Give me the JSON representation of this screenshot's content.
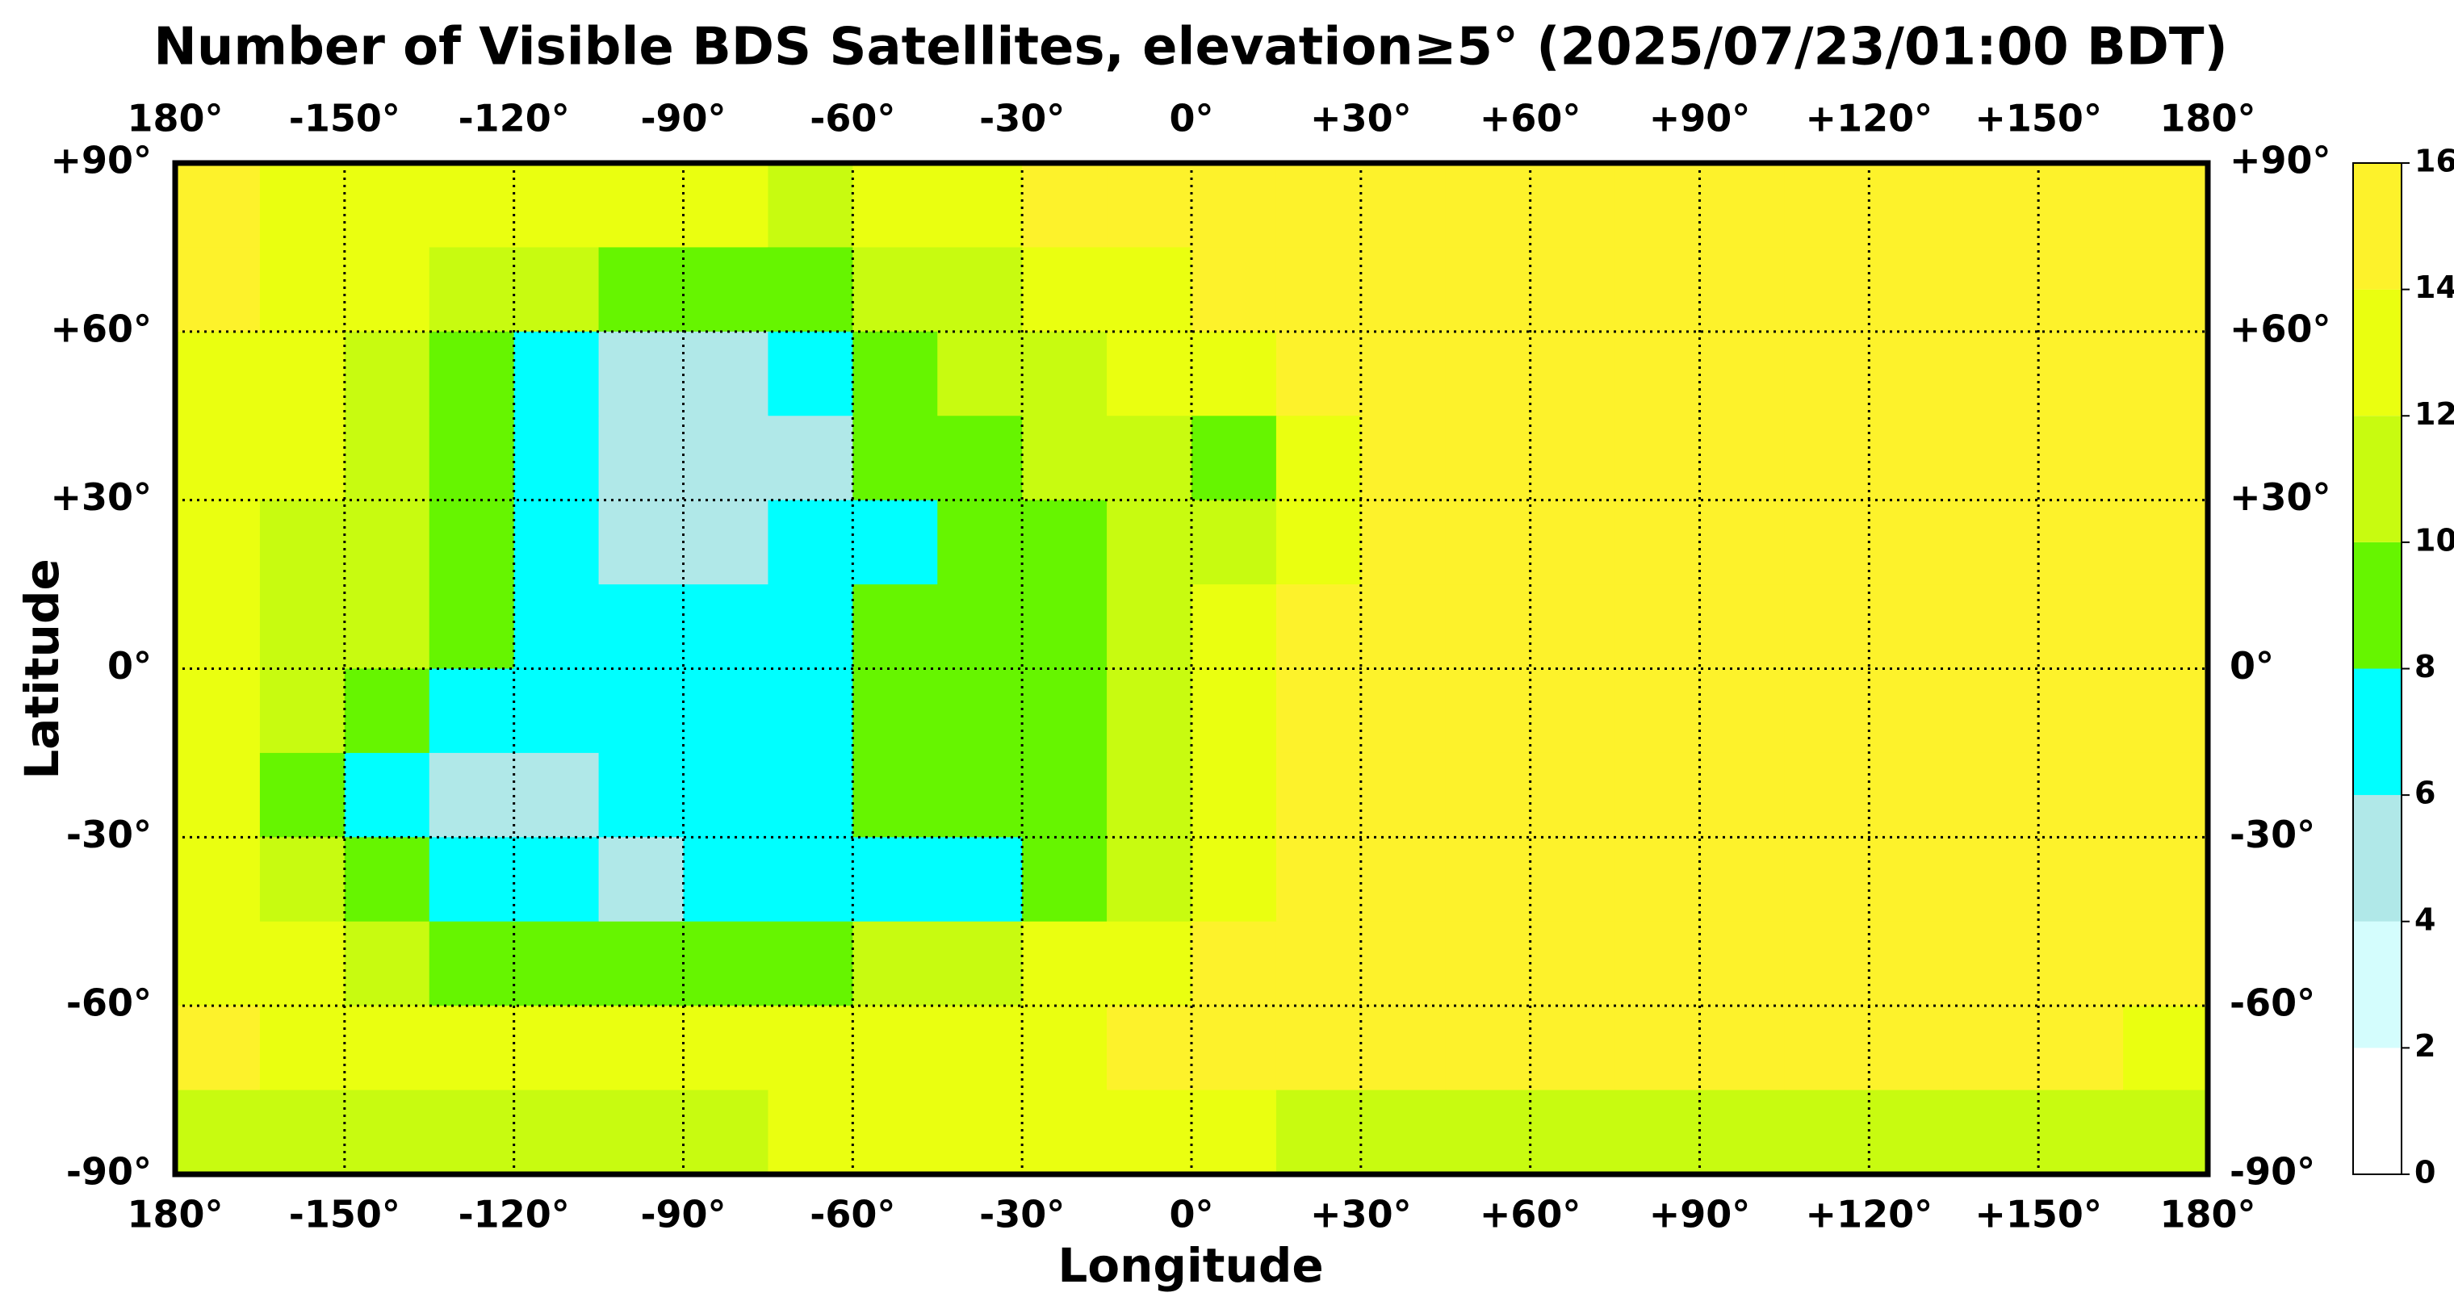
{
  "chart_data": {
    "type": "heatmap",
    "title": "Number of Visible BDS Satellites, elevation≥5° (2025/07/23/01:00 BDT)",
    "x_label": "Longitude",
    "y_label": "Latitude",
    "xlim": [
      -180,
      180
    ],
    "ylim": [
      -90,
      90
    ],
    "xticks": [
      {
        "value": -180,
        "label": "180°"
      },
      {
        "value": -150,
        "label": "-150°"
      },
      {
        "value": -120,
        "label": "-120°"
      },
      {
        "value": -90,
        "label": "-90°"
      },
      {
        "value": -60,
        "label": "-60°"
      },
      {
        "value": -30,
        "label": "-30°"
      },
      {
        "value": 0,
        "label": "0°"
      },
      {
        "value": 30,
        "label": "+30°"
      },
      {
        "value": 60,
        "label": "+60°"
      },
      {
        "value": 90,
        "label": "+90°"
      },
      {
        "value": 120,
        "label": "+120°"
      },
      {
        "value": 150,
        "label": "+150°"
      },
      {
        "value": 180,
        "label": "180°"
      }
    ],
    "yticks": [
      {
        "value": 90,
        "label": "+90°"
      },
      {
        "value": 60,
        "label": "+60°"
      },
      {
        "value": 30,
        "label": "+30°"
      },
      {
        "value": 0,
        "label": "0°"
      },
      {
        "value": -30,
        "label": "-30°"
      },
      {
        "value": -60,
        "label": "-60°"
      },
      {
        "value": -90,
        "label": "-90°"
      }
    ],
    "grid": true,
    "x_bins": [
      -180,
      -165,
      -150,
      -135,
      -120,
      -105,
      -90,
      -75,
      -60,
      -45,
      -30,
      -15,
      0,
      15,
      30,
      45,
      60,
      75,
      90,
      105,
      120,
      135,
      150,
      165,
      180
    ],
    "y_bins": [
      90,
      75,
      60,
      45,
      30,
      15,
      0,
      -15,
      -30,
      -45,
      -60,
      -75,
      -90
    ],
    "values": [
      [
        15,
        13,
        13,
        13,
        13,
        13,
        13,
        11,
        13,
        13,
        15,
        15,
        15,
        15,
        15,
        15,
        15,
        15,
        15,
        15,
        15,
        15,
        15,
        15
      ],
      [
        15,
        13,
        13,
        11,
        11,
        9,
        9,
        9,
        11,
        11,
        13,
        13,
        15,
        15,
        15,
        15,
        15,
        15,
        15,
        15,
        15,
        15,
        15,
        15
      ],
      [
        13,
        13,
        11,
        9,
        7,
        5,
        5,
        7,
        9,
        11,
        11,
        13,
        13,
        15,
        15,
        15,
        15,
        15,
        15,
        15,
        15,
        15,
        15,
        15
      ],
      [
        13,
        13,
        11,
        9,
        7,
        5,
        5,
        5,
        9,
        9,
        11,
        11,
        9,
        13,
        15,
        15,
        15,
        15,
        15,
        15,
        15,
        15,
        15,
        15
      ],
      [
        13,
        11,
        11,
        9,
        7,
        5,
        5,
        7,
        7,
        9,
        9,
        11,
        11,
        13,
        15,
        15,
        15,
        15,
        15,
        15,
        15,
        15,
        15,
        15
      ],
      [
        13,
        11,
        11,
        9,
        7,
        7,
        7,
        7,
        9,
        9,
        9,
        11,
        13,
        15,
        15,
        15,
        15,
        15,
        15,
        15,
        15,
        15,
        15,
        15
      ],
      [
        13,
        11,
        9,
        7,
        7,
        7,
        7,
        7,
        9,
        9,
        9,
        11,
        13,
        15,
        15,
        15,
        15,
        15,
        15,
        15,
        15,
        15,
        15,
        15
      ],
      [
        13,
        9,
        7,
        5,
        5,
        7,
        7,
        7,
        9,
        9,
        9,
        11,
        13,
        15,
        15,
        15,
        15,
        15,
        15,
        15,
        15,
        15,
        15,
        15
      ],
      [
        13,
        11,
        9,
        7,
        7,
        5,
        7,
        7,
        7,
        7,
        9,
        11,
        13,
        15,
        15,
        15,
        15,
        15,
        15,
        15,
        15,
        15,
        15,
        15
      ],
      [
        13,
        13,
        11,
        9,
        9,
        9,
        9,
        9,
        11,
        11,
        13,
        13,
        15,
        15,
        15,
        15,
        15,
        15,
        15,
        15,
        15,
        15,
        15,
        15
      ],
      [
        15,
        13,
        13,
        13,
        13,
        13,
        13,
        13,
        13,
        13,
        13,
        15,
        15,
        15,
        15,
        15,
        15,
        15,
        15,
        15,
        15,
        15,
        15,
        13
      ],
      [
        11,
        11,
        11,
        11,
        11,
        11,
        11,
        13,
        13,
        13,
        13,
        13,
        13,
        11,
        11,
        11,
        11,
        11,
        11,
        11,
        11,
        11,
        11,
        11
      ]
    ],
    "levels": [
      0,
      2,
      4,
      6,
      8,
      10,
      12,
      14,
      16
    ],
    "colors": [
      "#ffffff",
      "#d4fdfd",
      "#b0e8e8",
      "#00ffff",
      "#66f500",
      "#c8fb10",
      "#eaff10",
      "#fdf22b"
    ]
  }
}
